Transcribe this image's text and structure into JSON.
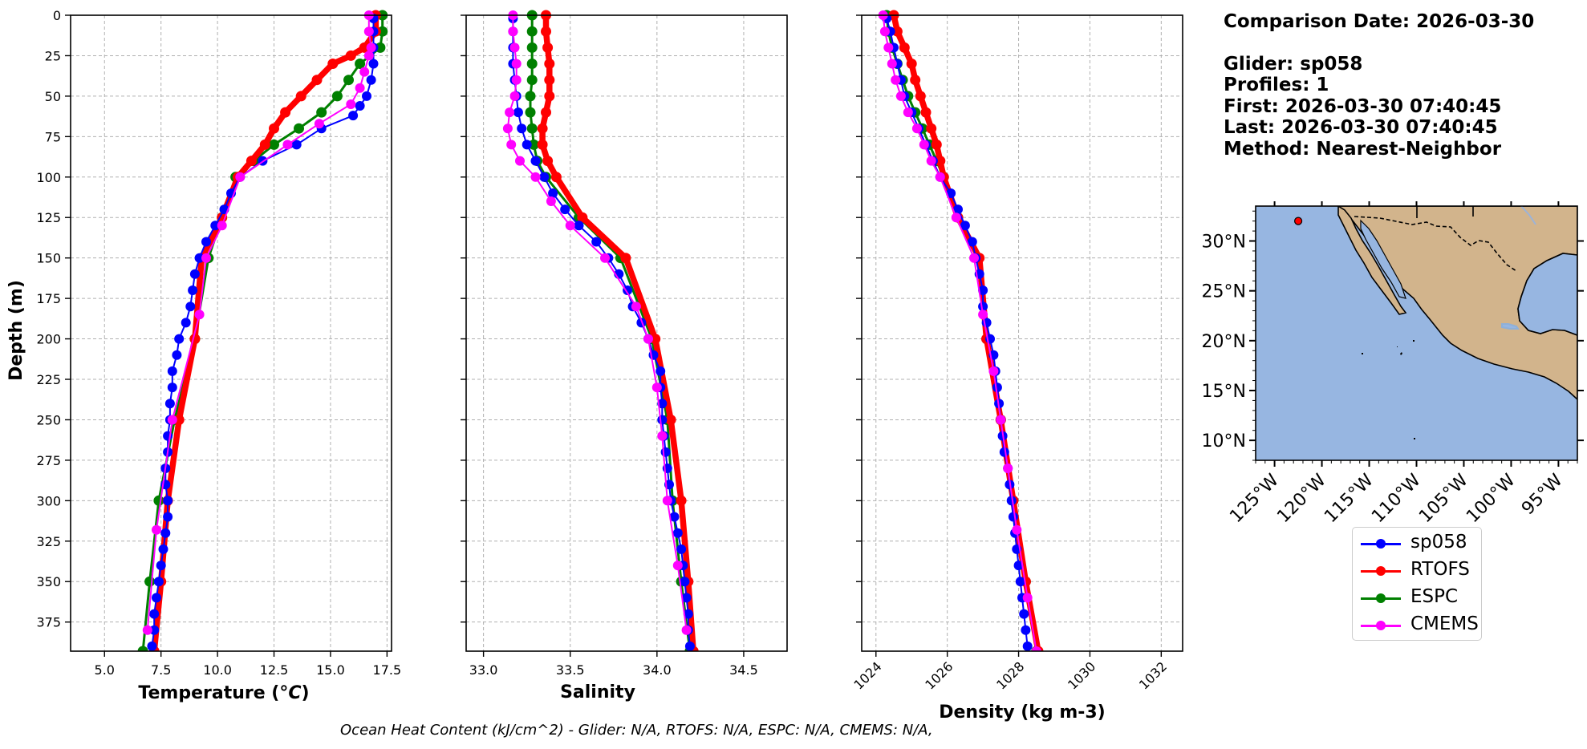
{
  "info": {
    "comparison_date": "Comparison Date: 2026-03-30",
    "glider": "Glider: sp058",
    "profiles": "Profiles: 1",
    "first": "First: 2026-03-30 07:40:45",
    "last": "Last: 2026-03-30 07:40:45",
    "method": "Method: Nearest-Neighbor"
  },
  "footer": "Ocean Heat Content (kJ/cm^2) - Glider: N/A,  RTOFS: N/A,  ESPC: N/A,  CMEMS: N/A,",
  "colors": {
    "sp058": "#0000ff",
    "RTOFS": "#ff0000",
    "ESPC": "#008000",
    "CMEMS": "#ff00ff",
    "ocean": "#97b6e1",
    "land": "#d2b48c"
  },
  "legend": [
    {
      "name": "sp058",
      "color": "#0000ff"
    },
    {
      "name": "RTOFS",
      "color": "#ff0000"
    },
    {
      "name": "ESPC",
      "color": "#008000"
    },
    {
      "name": "CMEMS",
      "color": "#ff00ff"
    }
  ],
  "chart_data": [
    {
      "type": "line",
      "xlabel": "Temperature (°C)",
      "ylabel": "Depth (m)",
      "xlim": [
        3.5,
        17.7
      ],
      "ylim": [
        393,
        0
      ],
      "xticks": [
        "5.0",
        "7.5",
        "10.0",
        "12.5",
        "15.0",
        "17.5"
      ],
      "yticks": [
        "0",
        "25",
        "50",
        "75",
        "100",
        "125",
        "150",
        "175",
        "200",
        "225",
        "250",
        "275",
        "300",
        "325",
        "350",
        "375"
      ],
      "grid": true,
      "series": [
        {
          "name": "sp058",
          "depth": [
            2,
            10,
            20,
            30,
            40,
            50,
            56,
            62,
            70,
            80,
            90,
            100,
            110,
            120,
            130,
            140,
            150,
            160,
            170,
            180,
            190,
            200,
            210,
            220,
            230,
            240,
            250,
            260,
            270,
            280,
            290,
            300,
            310,
            320,
            330,
            340,
            350,
            360,
            370,
            380,
            390
          ],
          "values": [
            16.9,
            16.9,
            16.9,
            16.9,
            16.8,
            16.6,
            16.3,
            16.0,
            14.6,
            13.5,
            12.0,
            11.0,
            10.6,
            10.3,
            9.9,
            9.5,
            9.2,
            9.0,
            8.9,
            8.8,
            8.6,
            8.3,
            8.2,
            8.0,
            8.0,
            7.9,
            7.9,
            7.8,
            7.8,
            7.7,
            7.7,
            7.8,
            7.8,
            7.7,
            7.6,
            7.5,
            7.4,
            7.3,
            7.2,
            7.2,
            7.1
          ]
        },
        {
          "name": "RTOFS",
          "depth": [
            0,
            10,
            20,
            25,
            30,
            40,
            50,
            60,
            70,
            80,
            90,
            100,
            125,
            150,
            200,
            250,
            300,
            350,
            393
          ],
          "values": [
            17.0,
            17.0,
            16.5,
            15.9,
            15.1,
            14.4,
            13.7,
            13.0,
            12.5,
            12.1,
            11.5,
            10.9,
            10.2,
            9.3,
            9.0,
            8.3,
            7.8,
            7.5,
            7.2
          ]
        },
        {
          "name": "ESPC",
          "depth": [
            0,
            10,
            20,
            30,
            40,
            50,
            60,
            70,
            80,
            90,
            100,
            125,
            150,
            200,
            250,
            300,
            350,
            393
          ],
          "values": [
            17.3,
            17.3,
            17.2,
            16.3,
            15.8,
            15.3,
            14.6,
            13.6,
            12.5,
            11.6,
            10.8,
            10.2,
            9.6,
            9.0,
            8.1,
            7.4,
            7.0,
            6.7
          ]
        },
        {
          "name": "CMEMS",
          "depth": [
            0,
            10,
            20,
            25,
            35,
            45,
            55,
            67,
            80,
            100,
            130,
            150,
            185,
            250,
            318,
            380
          ],
          "values": [
            16.7,
            16.7,
            16.8,
            16.7,
            16.5,
            16.3,
            15.9,
            14.5,
            13.1,
            11.0,
            10.2,
            9.5,
            9.2,
            8.0,
            7.3,
            6.9
          ]
        }
      ]
    },
    {
      "type": "line",
      "xlabel": "Salinity",
      "xlim": [
        32.9,
        34.75
      ],
      "ylim": [
        393,
        0
      ],
      "xticks": [
        "33.0",
        "33.5",
        "34.0",
        "34.5"
      ],
      "grid": true,
      "series": [
        {
          "name": "sp058",
          "depth": [
            2,
            10,
            20,
            30,
            40,
            50,
            60,
            70,
            80,
            90,
            100,
            110,
            120,
            130,
            140,
            150,
            160,
            170,
            180,
            190,
            200,
            210,
            220,
            230,
            240,
            250,
            260,
            270,
            280,
            290,
            300,
            310,
            320,
            330,
            340,
            350,
            360,
            370,
            380,
            390
          ],
          "values": [
            33.17,
            33.17,
            33.17,
            33.17,
            33.18,
            33.19,
            33.2,
            33.22,
            33.25,
            33.3,
            33.35,
            33.4,
            33.47,
            33.55,
            33.65,
            33.72,
            33.78,
            33.83,
            33.86,
            33.91,
            33.95,
            33.98,
            34.02,
            34.02,
            34.03,
            34.03,
            34.04,
            34.05,
            34.06,
            34.07,
            34.08,
            34.1,
            34.12,
            34.14,
            34.15,
            34.16,
            34.17,
            34.18,
            34.18,
            34.19
          ]
        },
        {
          "name": "RTOFS",
          "depth": [
            0,
            10,
            20,
            30,
            40,
            50,
            60,
            70,
            80,
            90,
            100,
            125,
            150,
            200,
            250,
            300,
            350,
            393
          ],
          "values": [
            33.36,
            33.36,
            33.37,
            33.38,
            33.38,
            33.38,
            33.36,
            33.34,
            33.34,
            33.37,
            33.42,
            33.57,
            33.82,
            33.99,
            34.08,
            34.14,
            34.18,
            34.21
          ]
        },
        {
          "name": "ESPC",
          "depth": [
            0,
            10,
            20,
            30,
            40,
            50,
            60,
            70,
            80,
            90,
            100,
            125,
            150,
            200,
            250,
            300,
            350,
            393
          ],
          "values": [
            33.28,
            33.28,
            33.28,
            33.28,
            33.28,
            33.27,
            33.27,
            33.28,
            33.29,
            33.31,
            33.36,
            33.55,
            33.79,
            33.97,
            34.06,
            34.09,
            34.14,
            34.19
          ]
        },
        {
          "name": "CMEMS",
          "depth": [
            0,
            10,
            20,
            30,
            40,
            50,
            60,
            70,
            80,
            90,
            100,
            115,
            130,
            150,
            180,
            200,
            230,
            260,
            300,
            340,
            380
          ],
          "values": [
            33.17,
            33.17,
            33.18,
            33.19,
            33.19,
            33.18,
            33.15,
            33.14,
            33.16,
            33.21,
            33.3,
            33.39,
            33.5,
            33.7,
            33.88,
            33.95,
            34.0,
            34.03,
            34.06,
            34.12,
            34.17
          ]
        }
      ]
    },
    {
      "type": "line",
      "xlabel": "Density (kg m-3)",
      "xlim": [
        1023.6,
        1032.6
      ],
      "ylim": [
        393,
        0
      ],
      "xticks": [
        "1024",
        "1026",
        "1028",
        "1030",
        "1032"
      ],
      "grid": true,
      "series": [
        {
          "name": "sp058",
          "depth": [
            2,
            10,
            20,
            30,
            40,
            50,
            60,
            70,
            80,
            90,
            100,
            110,
            120,
            130,
            140,
            150,
            160,
            170,
            180,
            190,
            200,
            210,
            220,
            230,
            240,
            250,
            260,
            270,
            280,
            290,
            300,
            310,
            320,
            330,
            340,
            350,
            360,
            370,
            380,
            390
          ],
          "values": [
            1024.3,
            1024.4,
            1024.5,
            1024.6,
            1024.7,
            1024.8,
            1025.0,
            1025.2,
            1025.4,
            1025.6,
            1025.8,
            1026.1,
            1026.3,
            1026.5,
            1026.7,
            1026.8,
            1026.9,
            1027.0,
            1027.0,
            1027.1,
            1027.2,
            1027.3,
            1027.35,
            1027.4,
            1027.45,
            1027.5,
            1027.55,
            1027.6,
            1027.7,
            1027.75,
            1027.8,
            1027.85,
            1027.9,
            1027.95,
            1028.0,
            1028.05,
            1028.1,
            1028.15,
            1028.2,
            1028.25
          ]
        },
        {
          "name": "RTOFS",
          "depth": [
            0,
            10,
            20,
            30,
            40,
            50,
            60,
            70,
            80,
            90,
            100,
            125,
            150,
            200,
            250,
            300,
            350,
            393
          ],
          "values": [
            1024.5,
            1024.6,
            1024.8,
            1025.0,
            1025.1,
            1025.25,
            1025.4,
            1025.55,
            1025.7,
            1025.8,
            1025.9,
            1026.3,
            1026.9,
            1027.1,
            1027.5,
            1027.85,
            1028.2,
            1028.55
          ]
        },
        {
          "name": "ESPC",
          "depth": [
            0,
            10,
            20,
            30,
            40,
            50,
            60,
            70,
            80,
            90,
            100,
            125,
            150,
            200,
            250,
            300,
            350,
            393
          ],
          "values": [
            1024.3,
            1024.35,
            1024.45,
            1024.6,
            1024.75,
            1024.9,
            1025.1,
            1025.3,
            1025.5,
            1025.7,
            1025.9,
            1026.3,
            1026.85,
            1027.1,
            1027.5,
            1027.85,
            1028.2,
            1028.5
          ]
        },
        {
          "name": "CMEMS",
          "depth": [
            0,
            10,
            20,
            30,
            40,
            50,
            60,
            70,
            80,
            90,
            100,
            125,
            150,
            185,
            220,
            250,
            280,
            318,
            360,
            393
          ],
          "values": [
            1024.2,
            1024.25,
            1024.35,
            1024.45,
            1024.55,
            1024.7,
            1024.9,
            1025.15,
            1025.35,
            1025.55,
            1025.8,
            1026.25,
            1026.75,
            1027.0,
            1027.3,
            1027.5,
            1027.7,
            1027.95,
            1028.25,
            1028.5
          ]
        }
      ]
    }
  ],
  "map": {
    "xticks": [
      "125°W",
      "120°W",
      "115°W",
      "110°W",
      "105°W",
      "100°W",
      "95°W"
    ],
    "yticks": [
      "30°N",
      "25°N",
      "20°N",
      "15°N",
      "10°N"
    ],
    "lon_range": [
      -127,
      -93
    ],
    "lat_range": [
      8,
      33.5
    ],
    "glider_position": {
      "lon": -122.5,
      "lat": 32.0
    }
  }
}
